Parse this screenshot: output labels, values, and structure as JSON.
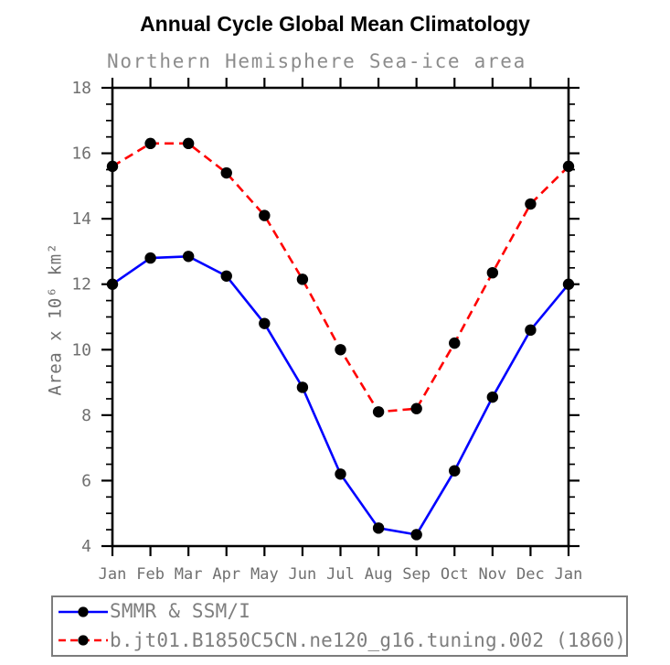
{
  "chart_data": {
    "type": "line",
    "title": "Annual Cycle Global Mean Climatology",
    "subtitle": "Northern Hemisphere Sea-ice area",
    "ylabel": "Area x 10⁶ km²",
    "xlabel": "",
    "categories": [
      "Jan",
      "Feb",
      "Mar",
      "Apr",
      "May",
      "Jun",
      "Jul",
      "Aug",
      "Sep",
      "Oct",
      "Nov",
      "Dec",
      "Jan"
    ],
    "series": [
      {
        "name": "SMMR & SSM/I",
        "color": "#0000ff",
        "line_style": "solid",
        "marker": "filled-circle",
        "marker_color": "#000000",
        "values": [
          12.0,
          12.8,
          12.85,
          12.25,
          10.8,
          8.85,
          6.2,
          4.55,
          4.35,
          6.3,
          8.55,
          10.6,
          12.0
        ]
      },
      {
        "name": "b.jt01.B1850C5CN.ne120_g16.tuning.002 (1860)",
        "color": "#ff0000",
        "line_style": "dashed",
        "marker": "filled-circle",
        "marker_color": "#000000",
        "values": [
          15.6,
          16.3,
          16.3,
          15.4,
          14.1,
          12.15,
          10.0,
          8.1,
          8.2,
          10.2,
          12.35,
          14.45,
          15.6
        ]
      }
    ],
    "ylim": [
      4,
      18
    ],
    "yticks": [
      4,
      6,
      8,
      10,
      12,
      14,
      16,
      18
    ],
    "y_minor_step": 0.5,
    "grid": false,
    "legend_position": "bottom-left"
  }
}
